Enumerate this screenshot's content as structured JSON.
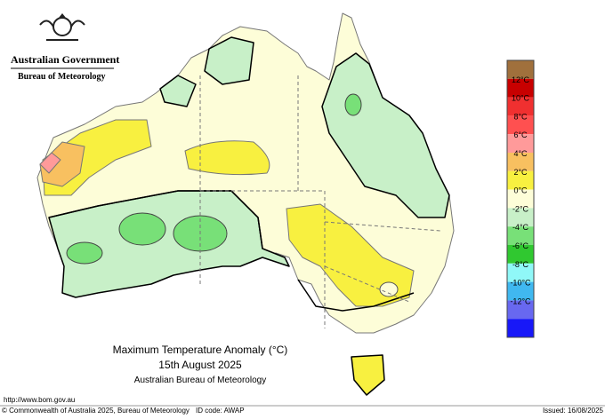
{
  "header": {
    "government": "Australian Government",
    "bureau": "Bureau of Meteorology"
  },
  "title": {
    "line1": "Maximum Temperature Anomaly (°C)",
    "line2": "15th August 2025",
    "line3": "Australian Bureau of Meteorology"
  },
  "legend": {
    "colors": [
      "#a0703c",
      "#c80000",
      "#f03030",
      "#ff5050",
      "#ff9a9a",
      "#f8c060",
      "#f8f040",
      "#fdfdd8",
      "#c8f0c8",
      "#78e078",
      "#30c830",
      "#90f8f8",
      "#40b8f0",
      "#6868f0",
      "#1818f8"
    ],
    "labels": [
      "12°C",
      "10°C",
      "8°C",
      "6°C",
      "4°C",
      "2°C",
      "0°C",
      "-2°C",
      "-4°C",
      "-6°C",
      "-8°C",
      "-10°C",
      "-12°C"
    ]
  },
  "footer": {
    "url": "http://www.bom.gov.au",
    "copyright": "© Commonwealth of Australia 2025, Bureau of Meteorology",
    "id_code": "ID code: AWAP",
    "issued": "Issued: 16/08/2025"
  }
}
